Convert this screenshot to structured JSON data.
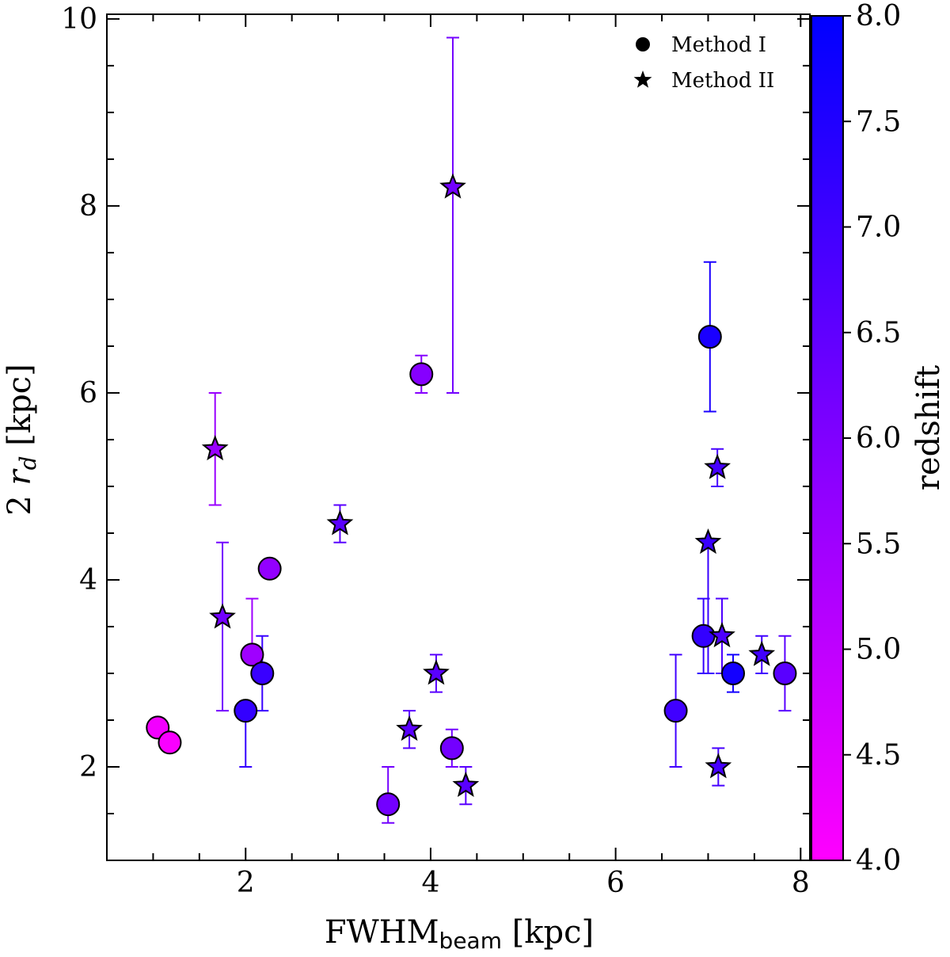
{
  "chart_data": {
    "type": "scatter",
    "title": "",
    "xlabel": {
      "main": "FWHM",
      "sub": "beam",
      "suffix": " [kpc]"
    },
    "ylabel": {
      "prefix": "2 ",
      "italic": "r",
      "sub": "d",
      "suffix": " [kpc]"
    },
    "xlim": [
      0.5,
      8.1
    ],
    "ylim": [
      1.0,
      10.05
    ],
    "xticks": [
      2,
      4,
      6,
      8
    ],
    "yticks": [
      2,
      4,
      6,
      8,
      10
    ],
    "colorbar": {
      "label": "redshift",
      "range": [
        4.0,
        8.0
      ],
      "ticks": [
        "4.0",
        "4.5",
        "5.0",
        "5.5",
        "6.0",
        "6.5",
        "7.0",
        "7.5",
        "8.0"
      ],
      "color_low": "#ff00ff",
      "color_high": "#0000ff"
    },
    "legend": {
      "position": "top-right",
      "entries": [
        {
          "marker": "circle",
          "label": "Method I"
        },
        {
          "marker": "star",
          "label": "Method II"
        }
      ]
    },
    "series": [
      {
        "name": "Method I",
        "marker": "circle",
        "points": [
          {
            "x": 1.05,
            "y": 2.42,
            "z": 4.2
          },
          {
            "x": 1.18,
            "y": 2.26,
            "z": 4.1
          },
          {
            "x": 2.0,
            "y": 2.6,
            "y_lo": 2.0,
            "y_hi": 2.6,
            "z": 7.2
          },
          {
            "x": 2.07,
            "y": 3.2,
            "y_lo": 3.2,
            "y_hi": 3.8,
            "z": 5.5
          },
          {
            "x": 2.18,
            "y": 3.0,
            "y_lo": 2.6,
            "y_hi": 3.4,
            "z": 7.1
          },
          {
            "x": 2.26,
            "y": 4.12,
            "z": 5.7
          },
          {
            "x": 3.54,
            "y": 1.6,
            "y_lo": 1.4,
            "y_hi": 2.0,
            "z": 6.2
          },
          {
            "x": 3.9,
            "y": 6.2,
            "y_lo": 6.0,
            "y_hi": 6.4,
            "z": 5.9
          },
          {
            "x": 4.23,
            "y": 2.2,
            "y_lo": 2.0,
            "y_hi": 2.4,
            "z": 6.2
          },
          {
            "x": 6.65,
            "y": 2.6,
            "y_lo": 2.0,
            "y_hi": 3.2,
            "z": 7.0
          },
          {
            "x": 6.95,
            "y": 3.4,
            "y_lo": 3.0,
            "y_hi": 3.8,
            "z": 7.2
          },
          {
            "x": 7.02,
            "y": 6.6,
            "y_lo": 5.8,
            "y_hi": 7.4,
            "z": 7.6
          },
          {
            "x": 7.27,
            "y": 3.0,
            "y_lo": 2.8,
            "y_hi": 3.2,
            "z": 7.7
          },
          {
            "x": 7.83,
            "y": 3.0,
            "y_lo": 2.6,
            "y_hi": 3.4,
            "z": 6.6
          }
        ]
      },
      {
        "name": "Method II",
        "marker": "star",
        "points": [
          {
            "x": 1.67,
            "y": 5.4,
            "y_lo": 4.8,
            "y_hi": 6.0,
            "z": 5.6
          },
          {
            "x": 1.75,
            "y": 3.6,
            "y_lo": 2.6,
            "y_hi": 4.4,
            "z": 6.2
          },
          {
            "x": 3.02,
            "y": 4.6,
            "y_lo": 4.4,
            "y_hi": 4.8,
            "z": 6.6
          },
          {
            "x": 3.77,
            "y": 2.4,
            "y_lo": 2.2,
            "y_hi": 2.6,
            "z": 6.6
          },
          {
            "x": 4.06,
            "y": 3.0,
            "y_lo": 2.8,
            "y_hi": 3.2,
            "z": 6.6
          },
          {
            "x": 4.24,
            "y": 8.2,
            "y_lo": 6.0,
            "y_hi": 9.8,
            "z": 6.2
          },
          {
            "x": 4.38,
            "y": 1.8,
            "y_lo": 1.6,
            "y_hi": 2.0,
            "z": 6.6
          },
          {
            "x": 7.0,
            "y": 4.4,
            "y_lo": 3.0,
            "y_hi": 4.4,
            "z": 7.1
          },
          {
            "x": 7.1,
            "y": 5.2,
            "y_lo": 5.0,
            "y_hi": 5.4,
            "z": 6.9
          },
          {
            "x": 7.11,
            "y": 2.0,
            "y_lo": 1.8,
            "y_hi": 2.2,
            "z": 6.9
          },
          {
            "x": 7.15,
            "y": 3.4,
            "y_lo": 3.0,
            "y_hi": 3.8,
            "z": 6.8
          },
          {
            "x": 7.58,
            "y": 3.2,
            "y_lo": 3.0,
            "y_hi": 3.4,
            "z": 7.0
          }
        ]
      }
    ]
  }
}
